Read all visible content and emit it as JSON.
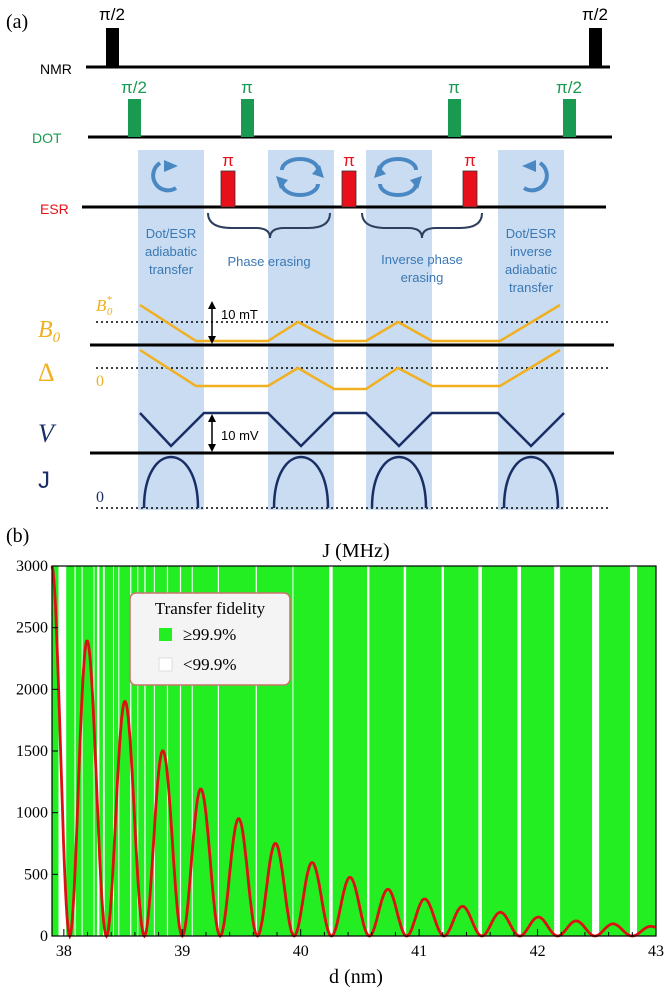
{
  "panel_a": {
    "label": "(a)",
    "rows": {
      "nmr": "NMR",
      "dot": "DOT",
      "esr": "ESR",
      "b0": "B",
      "b0_sub": "0",
      "delta": "Δ",
      "v": "V",
      "j": "J"
    },
    "pulses": {
      "half_pi": "π/2",
      "pi": "π"
    },
    "stages": {
      "stage1": [
        "Dot/ESR",
        "adiabatic",
        "transfer"
      ],
      "stage2": [
        "Phase erasing"
      ],
      "stage3": [
        "Inverse phase",
        "erasing"
      ],
      "stage4": [
        "Dot/ESR",
        "inverse",
        "adiabatic",
        "transfer"
      ]
    },
    "levels": {
      "b0_star": "B",
      "b0_star_sup": "*",
      "b0_star_sub": "0",
      "delta_zero": "0",
      "j_zero": "0"
    },
    "scales": {
      "b_scale": "10 mT",
      "v_scale": "10 mV"
    },
    "colors": {
      "nmr": "#000000",
      "dot": "#1a9a50",
      "esr": "#e8101a",
      "b0": "#f0b020",
      "v": "#1a2e66",
      "highlight": "#c9dcf2",
      "stage_text": "#3a78b4"
    }
  },
  "panel_b": {
    "label": "(b)",
    "legend_title": "Transfer fidelity",
    "legend_high": "≥99.9%",
    "legend_low": "<99.9%",
    "colors": {
      "high": "#22ee22",
      "low": "#ffffff",
      "curve": "#dd1111"
    },
    "chart_data": {
      "type": "line",
      "title": "J (MHz)",
      "xlabel": "d (nm)",
      "ylabel": "",
      "xlim": [
        37.9,
        43.0
      ],
      "ylim": [
        0,
        3000
      ],
      "xticks": [
        38,
        39,
        40,
        41,
        42,
        43
      ],
      "yticks": [
        0,
        500,
        1000,
        1500,
        2000,
        2500,
        3000
      ],
      "series": [
        {
          "name": "",
          "peaks_x": [
            37.9,
            38.2,
            38.52,
            38.84,
            39.16,
            39.48,
            39.79,
            40.1,
            40.42,
            40.74,
            41.05,
            41.37,
            41.69,
            42.01,
            42.33,
            42.64,
            42.96
          ],
          "peaks_y": [
            3000,
            2390,
            1900,
            1500,
            1190,
            950,
            750,
            595,
            475,
            378,
            300,
            240,
            192,
            153,
            122,
            98,
            78
          ]
        }
      ],
      "low_fidelity_bands": [
        [
          37.955,
          38.02
        ],
        [
          38.09,
          38.1
        ],
        [
          38.15,
          38.155
        ],
        [
          38.25,
          38.255
        ],
        [
          38.28,
          38.3
        ],
        [
          38.33,
          38.345
        ],
        [
          38.415,
          38.42
        ],
        [
          38.46,
          38.465
        ],
        [
          38.56,
          38.57
        ],
        [
          38.62,
          38.625
        ],
        [
          38.68,
          38.69
        ],
        [
          38.76,
          38.765
        ],
        [
          38.87,
          38.88
        ],
        [
          38.98,
          38.99
        ],
        [
          39.08,
          39.085
        ],
        [
          39.3,
          39.31
        ],
        [
          39.62,
          39.63
        ],
        [
          39.93,
          39.935
        ],
        [
          40.24,
          40.27
        ],
        [
          40.56,
          40.58
        ],
        [
          40.87,
          40.89
        ],
        [
          41.19,
          41.21
        ],
        [
          41.5,
          41.53
        ],
        [
          41.83,
          41.86
        ],
        [
          42.14,
          42.19
        ],
        [
          42.46,
          42.52
        ],
        [
          42.78,
          42.84
        ]
      ]
    }
  }
}
